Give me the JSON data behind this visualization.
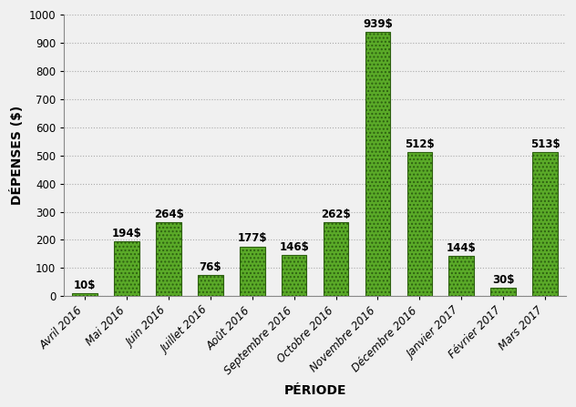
{
  "categories": [
    "Avril 2016",
    "Mai 2016",
    "Juin 2016",
    "Juillet 2016",
    "Août 2016",
    "Septembre 2016",
    "Octobre 2016",
    "Novembre 2016",
    "Décembre 2016",
    "Janvier 2017",
    "Février 2017",
    "Mars 2017"
  ],
  "values": [
    10,
    194,
    264,
    76,
    177,
    146,
    262,
    939,
    512,
    144,
    30,
    513
  ],
  "bar_color_face": "#5aaa28",
  "bar_color_edge": "#2d6010",
  "bar_hatch": "....",
  "ylabel": "DÉPENSES ($)",
  "xlabel": "PÉRIODE",
  "ylim": [
    0,
    1000
  ],
  "yticks": [
    0,
    100,
    200,
    300,
    400,
    500,
    600,
    700,
    800,
    900,
    1000
  ],
  "label_fontsize": 8.5,
  "axis_label_fontsize": 10,
  "tick_label_fontsize": 8.5,
  "background_color": "#f0f0f0",
  "plot_bg_color": "#f0f0f0",
  "grid_color": "#aaaaaa",
  "value_label_format": "{}$"
}
